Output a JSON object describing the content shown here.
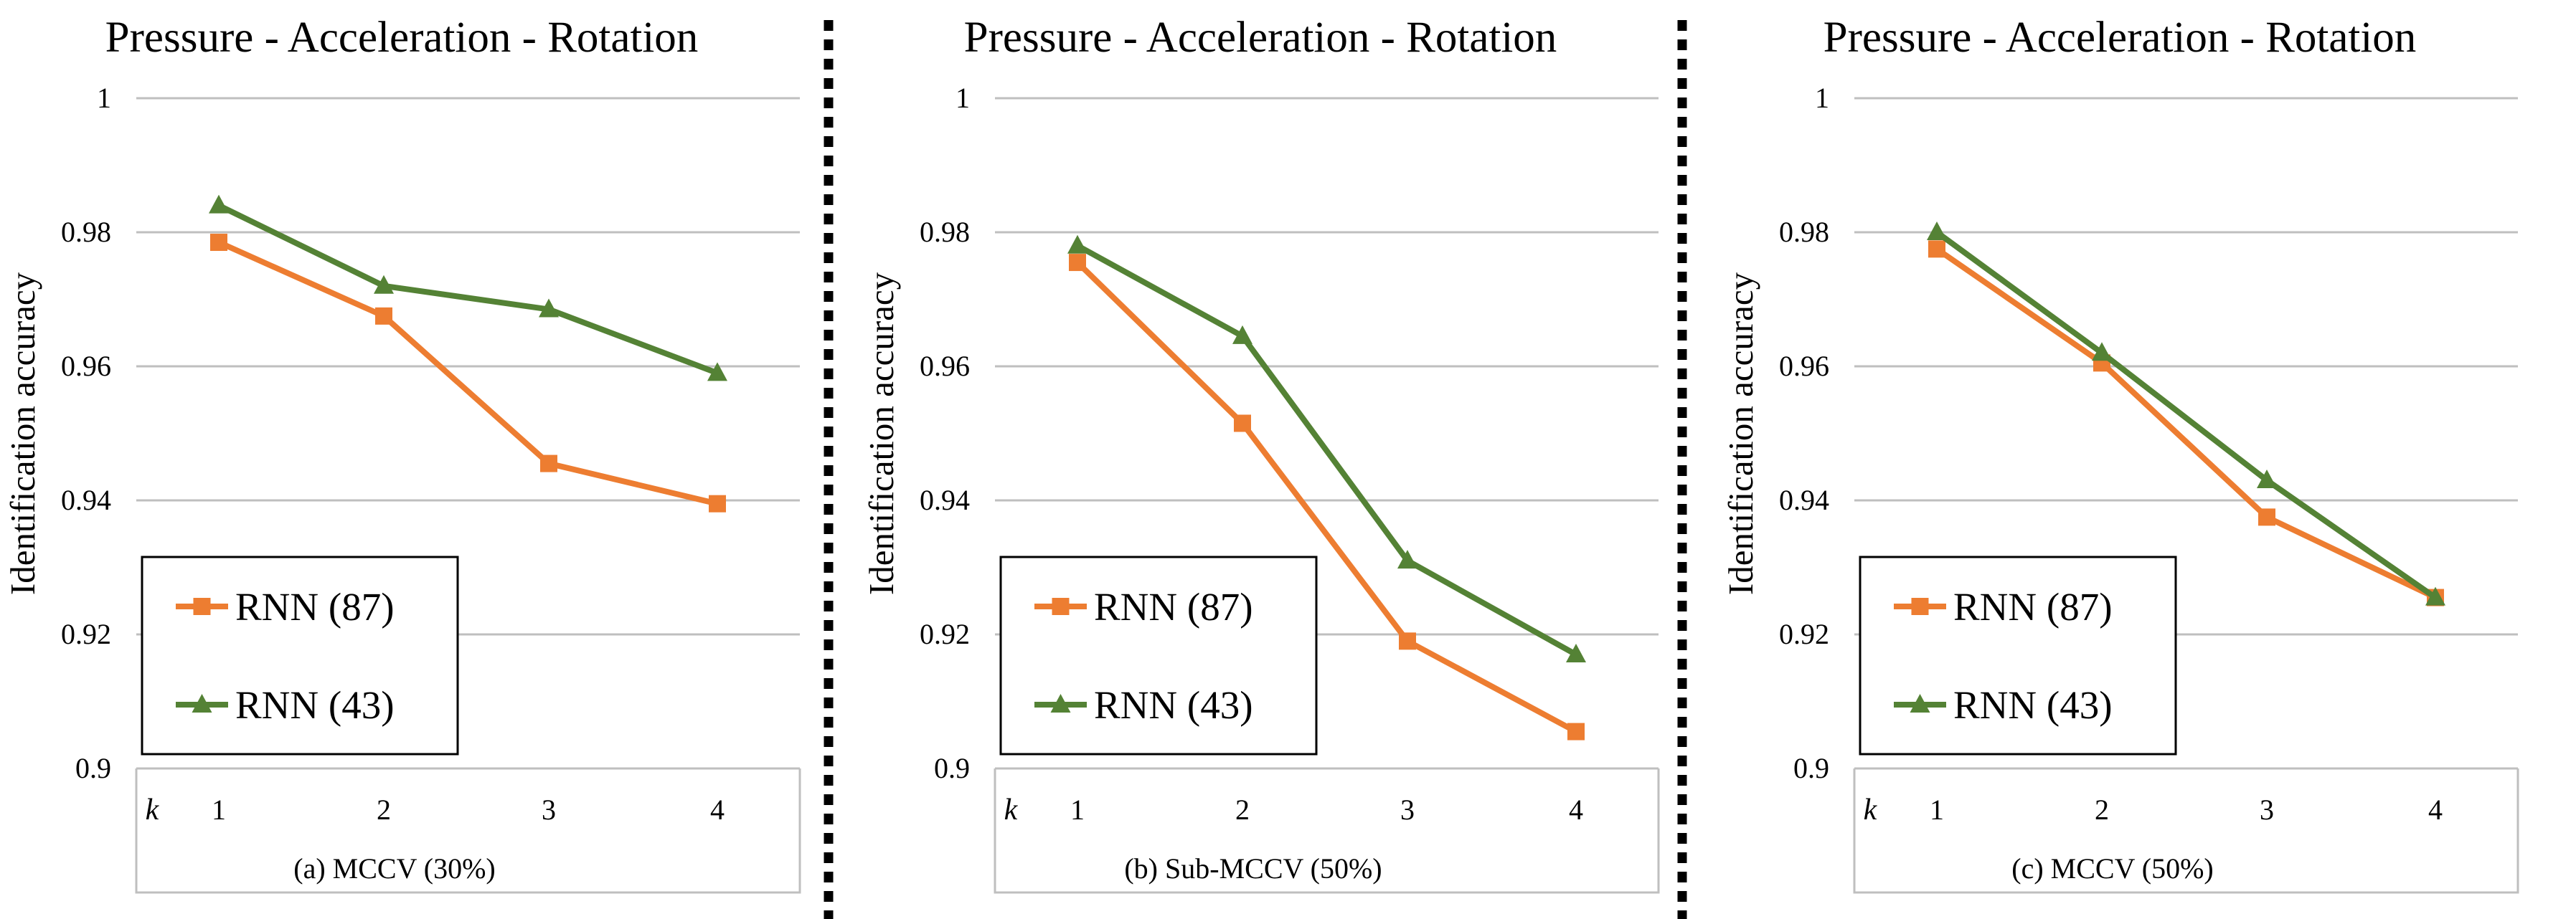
{
  "chart_data": [
    {
      "type": "line",
      "title": "Pressure - Acceleration - Rotation",
      "caption": "(a)  MCCV (30%)",
      "ylabel": "Identification accuracy",
      "x_axis_symbol": "k",
      "categories": [
        "1",
        "2",
        "3",
        "4"
      ],
      "y_ticks": [
        "0.9",
        "0.92",
        "0.94",
        "0.96",
        "0.98",
        "1"
      ],
      "ylim": [
        0.9,
        1.0
      ],
      "grid": true,
      "legend_position": "bottom-left",
      "series": [
        {
          "name": "RNN (87)",
          "marker": "square",
          "values": [
            0.9785,
            0.9675,
            0.9455,
            0.9395
          ]
        },
        {
          "name": "RNN (43)",
          "marker": "triangle",
          "values": [
            0.984,
            0.972,
            0.9685,
            0.959
          ]
        }
      ]
    },
    {
      "type": "line",
      "title": "Pressure - Acceleration - Rotation",
      "caption": "(b) Sub-MCCV (50%)",
      "ylabel": "Identification accuracy",
      "x_axis_symbol": "k",
      "categories": [
        "1",
        "2",
        "3",
        "4"
      ],
      "y_ticks": [
        "0.9",
        "0.92",
        "0.94",
        "0.96",
        "0.98",
        "1"
      ],
      "ylim": [
        0.9,
        1.0
      ],
      "grid": true,
      "legend_position": "bottom-left",
      "series": [
        {
          "name": "RNN (87)",
          "marker": "square",
          "values": [
            0.9755,
            0.9515,
            0.919,
            0.9055
          ]
        },
        {
          "name": "RNN (43)",
          "marker": "triangle",
          "values": [
            0.978,
            0.9645,
            0.931,
            0.917
          ]
        }
      ]
    },
    {
      "type": "line",
      "title": "Pressure - Acceleration - Rotation",
      "caption": "(c)  MCCV (50%)",
      "ylabel": "Identification accuracy",
      "x_axis_symbol": "k",
      "categories": [
        "1",
        "2",
        "3",
        "4"
      ],
      "y_ticks": [
        "0.9",
        "0.92",
        "0.94",
        "0.96",
        "0.98",
        "1"
      ],
      "ylim": [
        0.9,
        1.0
      ],
      "grid": true,
      "legend_position": "bottom-left",
      "series": [
        {
          "name": "RNN (87)",
          "marker": "square",
          "values": [
            0.9775,
            0.9605,
            0.9375,
            0.9255
          ]
        },
        {
          "name": "RNN (43)",
          "marker": "triangle",
          "values": [
            0.98,
            0.962,
            0.943,
            0.9255
          ]
        }
      ]
    }
  ],
  "colors": {
    "series_87": "#ED7D31",
    "series_43": "#548235",
    "grid": "#BFBFBF",
    "divider": "#000000"
  }
}
